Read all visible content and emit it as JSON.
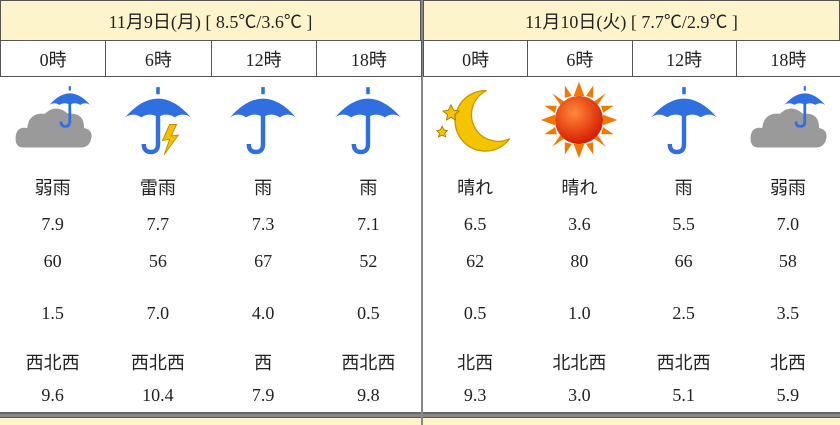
{
  "days": [
    {
      "header": "11月9日(月) [ 8.5℃/3.6℃ ]",
      "slots": [
        {
          "time": "0時",
          "weather": "弱雨",
          "temp": "7.9",
          "humidity": "60",
          "precip": "1.5",
          "wind_dir": "西北西",
          "wind_speed": "9.6"
        },
        {
          "time": "6時",
          "weather": "雷雨",
          "temp": "7.7",
          "humidity": "56",
          "precip": "7.0",
          "wind_dir": "西北西",
          "wind_speed": "10.4"
        },
        {
          "time": "12時",
          "weather": "雨",
          "temp": "7.3",
          "humidity": "67",
          "precip": "4.0",
          "wind_dir": "西",
          "wind_speed": "7.9"
        },
        {
          "time": "18時",
          "weather": "雨",
          "temp": "7.1",
          "humidity": "52",
          "precip": "0.5",
          "wind_dir": "西北西",
          "wind_speed": "9.8"
        }
      ]
    },
    {
      "header": "11月10日(火) [ 7.7℃/2.9℃ ]",
      "slots": [
        {
          "time": "0時",
          "weather": "晴れ",
          "temp": "6.5",
          "humidity": "62",
          "precip": "0.5",
          "wind_dir": "北西",
          "wind_speed": "9.3"
        },
        {
          "time": "6時",
          "weather": "晴れ",
          "temp": "3.6",
          "humidity": "80",
          "precip": "1.0",
          "wind_dir": "北北西",
          "wind_speed": "3.0"
        },
        {
          "time": "12時",
          "weather": "雨",
          "temp": "5.5",
          "humidity": "66",
          "precip": "2.5",
          "wind_dir": "西北西",
          "wind_speed": "5.1"
        },
        {
          "time": "18時",
          "weather": "弱雨",
          "temp": "7.0",
          "humidity": "58",
          "precip": "3.5",
          "wind_dir": "北西",
          "wind_speed": "5.9"
        }
      ]
    }
  ]
}
